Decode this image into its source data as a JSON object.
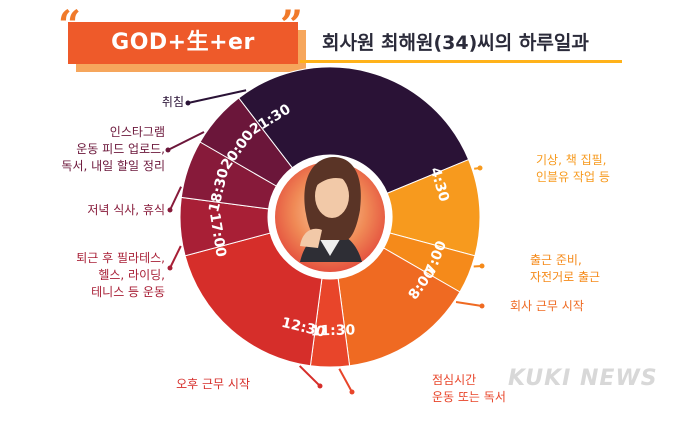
{
  "header": {
    "brand": "GOD+生+er",
    "subtitle": "회사원 최해원(34)씨의 하루일과"
  },
  "schedule": [
    {
      "time": "21:30",
      "label": "취침",
      "color": "#2a1236"
    },
    {
      "time": "4:30",
      "label": "기상, 책 집필,\n인블유 작업 등",
      "color": "#f79a1e"
    },
    {
      "time": "7:00",
      "label": "출근 준비,\n자전거로 출근",
      "color": "#f58a1a"
    },
    {
      "time": "8:00",
      "label": "회사 근무 시작",
      "color": "#ef6a22"
    },
    {
      "time": "11:30",
      "label": "점심시간\n운동 또는 독서",
      "color": "#e8452a"
    },
    {
      "time": "12:30",
      "label": "오후 근무 시작",
      "color": "#d62e2a"
    },
    {
      "time": "17:00",
      "label": "퇴근 후 필라테스,\n헬스, 라이딩,\n테니스 등 운동",
      "color": "#a81f36"
    },
    {
      "time": "18:30",
      "label": "저녁 식사, 휴식",
      "color": "#871a3a"
    },
    {
      "time": "20:00",
      "label": "인스타그램\n운동 피드 업로드,\n독서, 내일 할일 정리",
      "color": "#6b163a"
    }
  ],
  "watermark": "KUKI NEWS",
  "colors": {
    "accent": "#ee5a2a",
    "underline": "#ffb21a"
  }
}
